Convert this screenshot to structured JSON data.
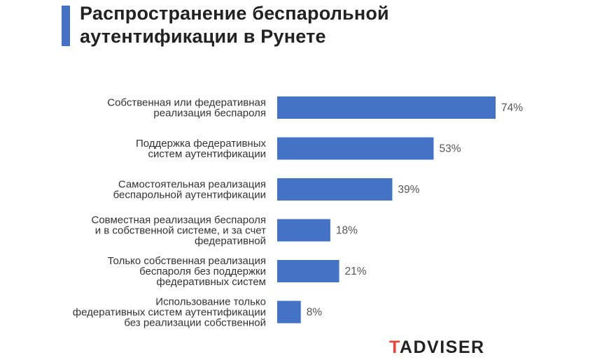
{
  "title_lines": [
    "Распространение беспарольной",
    "аутентификации в Рунете"
  ],
  "brand": {
    "first": "T",
    "rest": "ADVISER",
    "accent_color": "#e8453c"
  },
  "chart_data": {
    "type": "bar",
    "orientation": "horizontal",
    "title": "Распространение беспарольной аутентификации в Рунете",
    "bar_color": "#4472c4",
    "categories": [
      [
        "Собственная или федеративная",
        "реализация беспароля"
      ],
      [
        "Поддержка федеративных",
        "систем аутентификации"
      ],
      [
        "Самостоятельная реализация",
        "беспарольной аутентификации"
      ],
      [
        "Совместная реализация беспароля",
        "и в собственной системе, и за счет",
        "федеративной"
      ],
      [
        "Только собственная реализация",
        "беспароля без поддержки",
        "федеративных систем"
      ],
      [
        "Использование только",
        "федеративных систем аутентификации",
        "без реализации собственной"
      ]
    ],
    "values": [
      74,
      53,
      39,
      18,
      21,
      8
    ],
    "value_labels": [
      "74%",
      "53%",
      "39%",
      "18%",
      "21%",
      "8%"
    ],
    "xlim": [
      0,
      74
    ],
    "grid": false,
    "legend": "none"
  }
}
